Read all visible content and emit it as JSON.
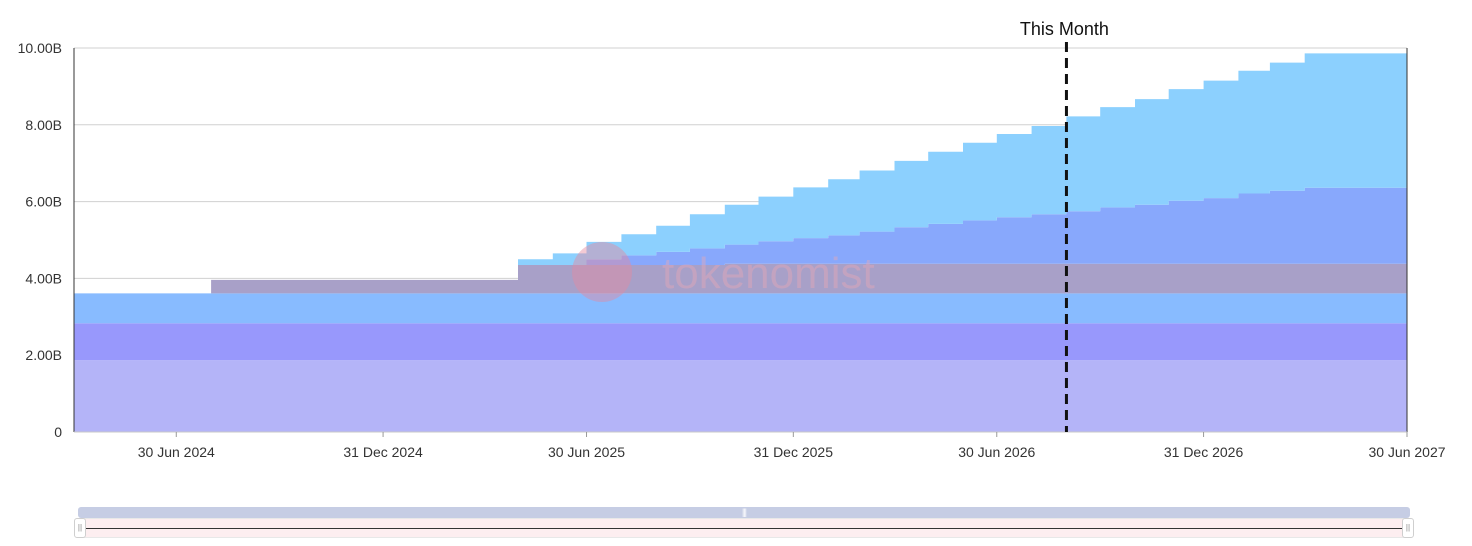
{
  "chart_data": {
    "type": "area",
    "stacked": true,
    "step": true,
    "y_tick_labels": [
      "0",
      "2.00B",
      "4.00B",
      "6.00B",
      "8.00B",
      "10.00B"
    ],
    "ylim": [
      0,
      10000000000
    ],
    "x_tick_labels": [
      "30 Jun 2024",
      "31 Dec 2024",
      "30 Jun 2025",
      "31 Dec 2025",
      "30 Jun 2026",
      "31 Dec 2026",
      "30 Jun 2027"
    ],
    "x_tick_dates": [
      "2024-06-30",
      "2024-12-31",
      "2025-06-30",
      "2025-12-31",
      "2026-06-30",
      "2026-12-31",
      "2027-06-30"
    ],
    "x_start": "2024-03-31",
    "x_end": "2027-06-30",
    "marker": {
      "label": "This Month",
      "date": "2026-08-31"
    },
    "grid": true,
    "series_colors": [
      "#b4b4f8",
      "#9898fc",
      "#88bbff",
      "#a8a0c8",
      "#88a8fc",
      "#8cd0fe"
    ],
    "series": [
      {
        "dates": [
          "2024-03-31",
          "2027-06-30"
        ],
        "values": [
          1870000000,
          1870000000
        ]
      },
      {
        "dates": [
          "2024-03-31",
          "2027-06-30"
        ],
        "values": [
          960000000,
          960000000
        ]
      },
      {
        "dates": [
          "2024-03-31",
          "2027-06-30"
        ],
        "values": [
          780000000,
          780000000
        ]
      },
      {
        "dates": [
          "2024-03-31",
          "2024-07-31",
          "2025-04-30",
          "2025-10-31",
          "2027-06-30"
        ],
        "values": [
          0,
          350000000,
          740000000,
          770000000,
          770000000
        ]
      },
      {
        "dates": [
          "2024-03-31",
          "2025-04-30",
          "2025-05-31",
          "2025-06-30",
          "2025-07-31",
          "2025-08-31",
          "2025-09-30",
          "2025-10-31",
          "2025-11-30",
          "2025-12-31",
          "2026-01-31",
          "2026-02-28",
          "2026-03-31",
          "2026-04-30",
          "2026-05-31",
          "2026-06-30",
          "2026-07-31",
          "2026-08-31",
          "2026-09-30",
          "2026-10-31",
          "2026-11-30",
          "2026-12-31",
          "2027-01-31",
          "2027-02-28",
          "2027-03-31",
          "2027-06-30"
        ],
        "values": [
          0,
          0,
          0,
          150000000,
          250000000,
          340000000,
          430000000,
          500000000,
          590000000,
          670000000,
          740000000,
          840000000,
          950000000,
          1040000000,
          1130000000,
          1210000000,
          1290000000,
          1370000000,
          1470000000,
          1540000000,
          1640000000,
          1710000000,
          1830000000,
          1900000000,
          1980000000,
          1980000000
        ]
      },
      {
        "dates": [
          "2024-03-31",
          "2025-04-30",
          "2025-05-31",
          "2025-06-30",
          "2025-07-31",
          "2025-08-31",
          "2025-09-30",
          "2025-10-31",
          "2025-11-30",
          "2025-12-31",
          "2026-01-31",
          "2026-02-28",
          "2026-03-31",
          "2026-04-30",
          "2026-05-31",
          "2026-06-30",
          "2026-07-31",
          "2026-08-31",
          "2026-09-30",
          "2026-10-31",
          "2026-11-30",
          "2026-12-31",
          "2027-01-31",
          "2027-02-28",
          "2027-03-31",
          "2027-06-30"
        ],
        "values": [
          0,
          150000000,
          300000000,
          450000000,
          550000000,
          680000000,
          890000000,
          1040000000,
          1160000000,
          1320000000,
          1460000000,
          1590000000,
          1730000000,
          1880000000,
          2020000000,
          2170000000,
          2300000000,
          2470000000,
          2610000000,
          2750000000,
          2910000000,
          3060000000,
          3200000000,
          3340000000,
          3500000000,
          3500000000
        ]
      }
    ]
  },
  "watermark": {
    "text": "tokenomist",
    "color": "#e4a8b8"
  },
  "colors": {
    "grid": "#d0d0d0",
    "axis": "#333333",
    "marker": "#111111"
  }
}
